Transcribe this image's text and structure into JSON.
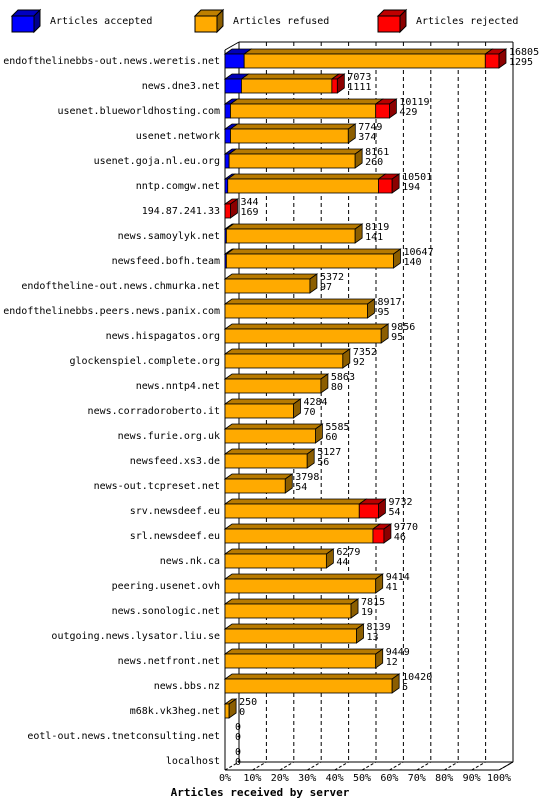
{
  "chart_data": {
    "type": "bar",
    "stacked": true,
    "orientation": "horizontal",
    "title": "Articles received by server",
    "xlim": [
      0,
      100
    ],
    "x_unit": "%",
    "x_ticks": [
      "0%",
      "10%",
      "20%",
      "30%",
      "40%",
      "50%",
      "60%",
      "70%",
      "80%",
      "90%",
      "100%"
    ],
    "grid": "vertical dashed",
    "legend_position": "top",
    "legend": [
      {
        "name": "Articles accepted",
        "color": "#0000ff"
      },
      {
        "name": "Articles refused",
        "color": "#ffaa00"
      },
      {
        "name": "Articles rejected",
        "color": "#ff0000"
      }
    ],
    "servers": [
      {
        "name": "endofthelinebbs-out.news.weretis.net",
        "total": "16805",
        "second": "1295",
        "accepted": 7,
        "refused": 88,
        "rejected": 5
      },
      {
        "name": "news.dne3.net",
        "total": "7073",
        "second": "1111",
        "accepted": 6,
        "refused": 33,
        "rejected": 2
      },
      {
        "name": "usenet.blueworldhosting.com",
        "total": "10119",
        "second": "429",
        "accepted": 2,
        "refused": 53,
        "rejected": 5
      },
      {
        "name": "usenet.network",
        "total": "7749",
        "second": "374",
        "accepted": 2,
        "refused": 43,
        "rejected": 0
      },
      {
        "name": "usenet.goja.nl.eu.org",
        "total": "8161",
        "second": "260",
        "accepted": 1.5,
        "refused": 46,
        "rejected": 0
      },
      {
        "name": "nntp.comgw.net",
        "total": "10501",
        "second": "194",
        "accepted": 1,
        "refused": 55,
        "rejected": 5
      },
      {
        "name": "194.87.241.33",
        "total": "344",
        "second": "169",
        "accepted": 0,
        "refused": 0,
        "rejected": 2
      },
      {
        "name": "news.samoylyk.net",
        "total": "8119",
        "second": "141",
        "accepted": 0.5,
        "refused": 47,
        "rejected": 0
      },
      {
        "name": "newsfeed.bofh.team",
        "total": "10647",
        "second": "140",
        "accepted": 0.5,
        "refused": 61,
        "rejected": 0
      },
      {
        "name": "endoftheline-out.news.chmurka.net",
        "total": "5372",
        "second": "97",
        "accepted": 0,
        "refused": 31,
        "rejected": 0
      },
      {
        "name": "endofthelinebbs.peers.news.panix.com",
        "total": "8917",
        "second": "95",
        "accepted": 0,
        "refused": 52,
        "rejected": 0
      },
      {
        "name": "news.hispagatos.org",
        "total": "9856",
        "second": "95",
        "accepted": 0,
        "refused": 57,
        "rejected": 0
      },
      {
        "name": "glockenspiel.complete.org",
        "total": "7352",
        "second": "92",
        "accepted": 0,
        "refused": 43,
        "rejected": 0
      },
      {
        "name": "news.nntp4.net",
        "total": "5863",
        "second": "80",
        "accepted": 0,
        "refused": 35,
        "rejected": 0
      },
      {
        "name": "news.corradoroberto.it",
        "total": "4284",
        "second": "70",
        "accepted": 0,
        "refused": 25,
        "rejected": 0
      },
      {
        "name": "news.furie.org.uk",
        "total": "5585",
        "second": "60",
        "accepted": 0,
        "refused": 33,
        "rejected": 0
      },
      {
        "name": "newsfeed.xs3.de",
        "total": "5127",
        "second": "56",
        "accepted": 0,
        "refused": 30,
        "rejected": 0
      },
      {
        "name": "news-out.tcpreset.net",
        "total": "3798",
        "second": "54",
        "accepted": 0,
        "refused": 22,
        "rejected": 0
      },
      {
        "name": "srv.newsdeef.eu",
        "total": "9732",
        "second": "54",
        "accepted": 0,
        "refused": 49,
        "rejected": 7
      },
      {
        "name": "srl.newsdeef.eu",
        "total": "9770",
        "second": "46",
        "accepted": 0,
        "refused": 54,
        "rejected": 4
      },
      {
        "name": "news.nk.ca",
        "total": "6279",
        "second": "44",
        "accepted": 0,
        "refused": 37,
        "rejected": 0
      },
      {
        "name": "peering.usenet.ovh",
        "total": "9414",
        "second": "41",
        "accepted": 0,
        "refused": 55,
        "rejected": 0
      },
      {
        "name": "news.sonologic.net",
        "total": "7815",
        "second": "19",
        "accepted": 0,
        "refused": 46,
        "rejected": 0
      },
      {
        "name": "outgoing.news.lysator.liu.se",
        "total": "8139",
        "second": "13",
        "accepted": 0,
        "refused": 48,
        "rejected": 0
      },
      {
        "name": "news.netfront.net",
        "total": "9449",
        "second": "12",
        "accepted": 0,
        "refused": 55,
        "rejected": 0
      },
      {
        "name": "news.bbs.nz",
        "total": "10420",
        "second": "5",
        "accepted": 0,
        "refused": 61,
        "rejected": 0
      },
      {
        "name": "m68k.vk3heg.net",
        "total": "250",
        "second": "0",
        "accepted": 0,
        "refused": 1.5,
        "rejected": 0
      },
      {
        "name": "eotl-out.news.tnetconsulting.net",
        "total": "0",
        "second": "0",
        "accepted": 0,
        "refused": 0,
        "rejected": 0
      },
      {
        "name": "localhost",
        "total": "0",
        "second": "0",
        "accepted": 0,
        "refused": 0,
        "rejected": 0
      }
    ]
  }
}
